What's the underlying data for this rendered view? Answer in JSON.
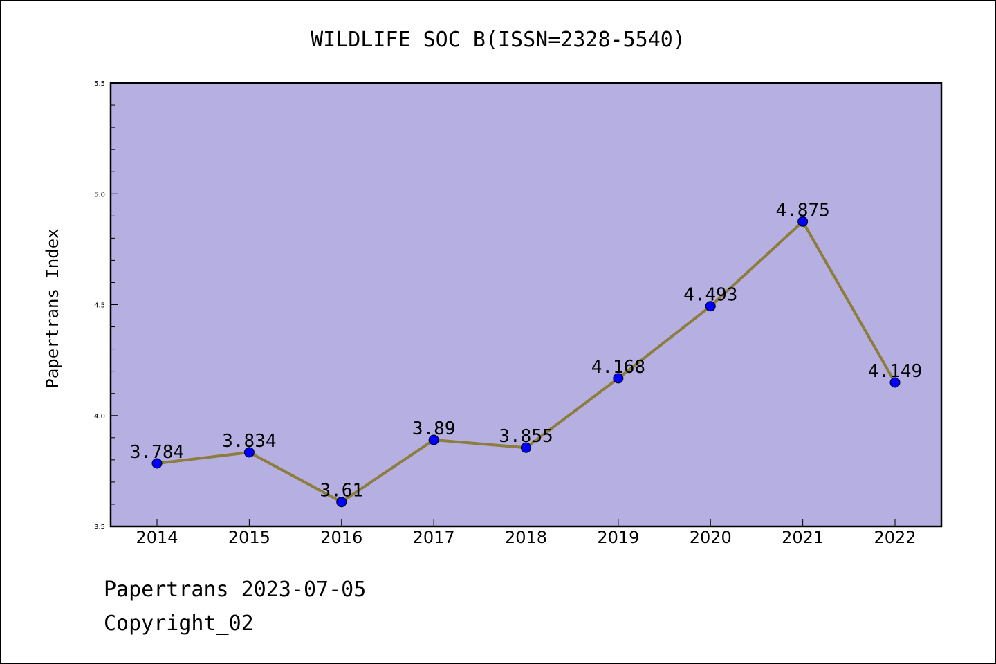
{
  "chart_data": {
    "type": "line",
    "title": "WILDLIFE SOC B(ISSN=2328-5540)",
    "ylabel": "Papertrans Index",
    "xlabel": "",
    "x": [
      "2014",
      "2015",
      "2016",
      "2017",
      "2018",
      "2019",
      "2020",
      "2021",
      "2022"
    ],
    "values": [
      3.784,
      3.834,
      3.61,
      3.89,
      3.855,
      4.168,
      4.493,
      4.875,
      4.149
    ],
    "data_labels": [
      "3.784",
      "3.834",
      "3.61",
      "3.89",
      "3.855",
      "4.168",
      "4.493",
      "4.875",
      "4.149"
    ],
    "ylim": [
      3.5,
      5.5
    ],
    "yticks": [
      "3.5",
      "4.0",
      "4.5",
      "5.0",
      "5.5"
    ],
    "grid": false,
    "colors": {
      "plot_background": "#b5afe2",
      "line": "#8c7d3c",
      "marker": "#0000ff"
    }
  },
  "footer": {
    "line1": "Papertrans 2023-07-05",
    "line2": "Copyright_02"
  }
}
